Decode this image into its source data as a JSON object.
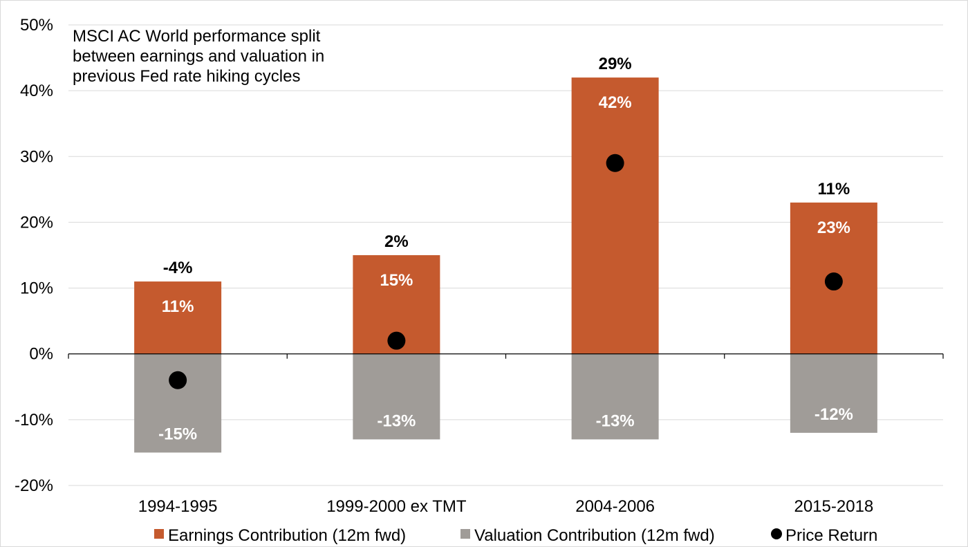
{
  "chart_data": {
    "type": "bar",
    "stacked": true,
    "title_lines": [
      "MSCI AC World performance split",
      "between earnings and valuation in",
      "previous Fed rate hiking cycles"
    ],
    "categories": [
      "1994-1995",
      "1999-2000 ex TMT",
      "2004-2006",
      "2015-2018"
    ],
    "series": [
      {
        "name": "Earnings Contribution (12m fwd)",
        "kind": "bar",
        "color": "#C55A2E",
        "values": [
          11,
          15,
          42,
          23
        ],
        "labels": [
          "11%",
          "15%",
          "42%",
          "23%"
        ]
      },
      {
        "name": "Valuation Contribution (12m fwd)",
        "kind": "bar",
        "color": "#A09C98",
        "values": [
          -15,
          -13,
          -13,
          -12
        ],
        "labels": [
          "-15%",
          "-13%",
          "-13%",
          "-12%"
        ]
      },
      {
        "name": "Price Return",
        "kind": "marker",
        "color": "#000000",
        "values": [
          -4,
          2,
          29,
          11
        ],
        "labels": [
          "-4%",
          "2%",
          "29%",
          "11%"
        ]
      }
    ],
    "ylim": [
      -20,
      50
    ],
    "yticks": [
      50,
      40,
      30,
      20,
      10,
      0,
      -10,
      -20
    ],
    "ytick_labels": [
      "50%",
      "40%",
      "30%",
      "20%",
      "10%",
      "0%",
      "-10%",
      "-20%"
    ],
    "grid": true,
    "legend_position": "bottom"
  }
}
